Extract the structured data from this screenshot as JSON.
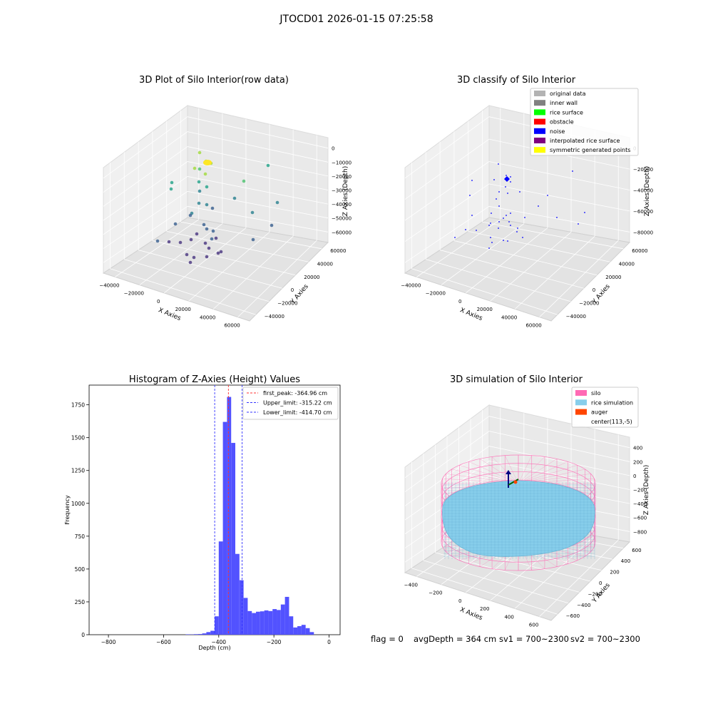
{
  "figure": {
    "suptitle": "JTOCD01 2026-01-15 07:25:58",
    "status_line": {
      "flag": "flag = 0",
      "avg_depth": "avgDepth = 364 cm",
      "sv1": "sv1 = 700~2300",
      "sv2": "sv2 = 700~2300"
    }
  },
  "colors": {
    "histogram_bar": "#5252ff",
    "peak_line": "#ff3333",
    "limit_line": "#3333ff",
    "silo_wire": "#ff69b4",
    "rice": "#87ceeb",
    "auger": "#ff4500",
    "pane": "#f2f2f2"
  },
  "chart_data": [
    {
      "type": "scatter",
      "title": "3D Plot of Silo Interior(row data)",
      "xlabel": "X Axies",
      "ylabel": "Y Axies",
      "zlabel": "Z Axies (Depth)",
      "xticks": [
        "−40000",
        "−20000",
        "0",
        "20000",
        "40000",
        "60000"
      ],
      "yticks": [
        "−40000",
        "−20000",
        "0",
        "20000",
        "40000",
        "60000"
      ],
      "zticks": [
        "−60000",
        "−50000",
        "−40000",
        "−30000",
        "−20000",
        "−10000",
        "0"
      ]
    },
    {
      "type": "scatter",
      "title": "3D classify of Silo Interior",
      "xlabel": "X Axies",
      "ylabel": "Y Axies",
      "zlabel": "Z Axies (Depth)",
      "xticks": [
        "−40000",
        "−20000",
        "0",
        "20000",
        "40000",
        "60000"
      ],
      "yticks": [
        "−40000",
        "−20000",
        "0",
        "20000",
        "40000",
        "60000"
      ],
      "zticks": [
        "−80000",
        "−60000",
        "−40000",
        "−20000",
        "0"
      ],
      "legend": [
        {
          "label": "original data",
          "color": "#b3b3b3"
        },
        {
          "label": "inner wall",
          "color": "#808080"
        },
        {
          "label": "rice surface",
          "color": "#00ff00"
        },
        {
          "label": "obstacle",
          "color": "#ff0000"
        },
        {
          "label": "noise",
          "color": "#0000ff"
        },
        {
          "label": "interpolated rice surface",
          "color": "#800080"
        },
        {
          "label": "symmetric generated points",
          "color": "#ffff00"
        }
      ]
    },
    {
      "type": "bar",
      "title": "Histogram of Z-Axies (Height) Values",
      "xlabel": "Depth (cm)",
      "ylabel": "Frequency",
      "xlim": [
        -870,
        40
      ],
      "ylim": [
        0,
        1900
      ],
      "xticks": [
        -800,
        -600,
        -400,
        -200,
        0
      ],
      "xtick_labels": [
        "−800",
        "−600",
        "−400",
        "−200",
        "0"
      ],
      "yticks": [
        0,
        250,
        500,
        750,
        1000,
        1250,
        1500,
        1750
      ],
      "bin_width": 15,
      "bins": [
        {
          "x": -520,
          "v": 3
        },
        {
          "x": -505,
          "v": 2
        },
        {
          "x": -490,
          "v": 4
        },
        {
          "x": -475,
          "v": 5
        },
        {
          "x": -460,
          "v": 10
        },
        {
          "x": -445,
          "v": 20
        },
        {
          "x": -430,
          "v": 30
        },
        {
          "x": -415,
          "v": 140
        },
        {
          "x": -400,
          "v": 710
        },
        {
          "x": -385,
          "v": 1620
        },
        {
          "x": -370,
          "v": 1810
        },
        {
          "x": -355,
          "v": 1460
        },
        {
          "x": -340,
          "v": 615
        },
        {
          "x": -325,
          "v": 415
        },
        {
          "x": -310,
          "v": 280
        },
        {
          "x": -295,
          "v": 180
        },
        {
          "x": -280,
          "v": 165
        },
        {
          "x": -265,
          "v": 175
        },
        {
          "x": -250,
          "v": 178
        },
        {
          "x": -235,
          "v": 185
        },
        {
          "x": -220,
          "v": 180
        },
        {
          "x": -205,
          "v": 195
        },
        {
          "x": -190,
          "v": 188
        },
        {
          "x": -175,
          "v": 230
        },
        {
          "x": -160,
          "v": 288
        },
        {
          "x": -145,
          "v": 140
        },
        {
          "x": -130,
          "v": 55
        },
        {
          "x": -115,
          "v": 65
        },
        {
          "x": -100,
          "v": 75
        },
        {
          "x": -85,
          "v": 50
        },
        {
          "x": -70,
          "v": 20
        }
      ],
      "vlines": [
        {
          "name": "first_peak",
          "label": "first_peak: -364.96 cm",
          "x": -364.96,
          "color": "#ff3333"
        },
        {
          "name": "upper_limit",
          "label": "Upper_limit: -315.22 cm",
          "x": -315.22,
          "color": "#3333ff"
        },
        {
          "name": "lower_limit",
          "label": "Lower_limit: -414.70 cm",
          "x": -414.7,
          "color": "#3333ff"
        }
      ]
    },
    {
      "type": "scatter",
      "title": "3D simulation of Silo Interior",
      "xlabel": "X Axies",
      "ylabel": "Y Axies",
      "zlabel": "Z Axies (Depth)",
      "xticks": [
        "−400",
        "−200",
        "0",
        "200",
        "400",
        "600"
      ],
      "yticks": [
        "−600",
        "−400",
        "−200",
        "0",
        "200",
        "400",
        "600"
      ],
      "zticks": [
        "−800",
        "−600",
        "−400",
        "−200",
        "0",
        "200",
        "400"
      ],
      "legend": [
        {
          "label": "silo",
          "color": "#ff69b4"
        },
        {
          "label": "rice simulation",
          "color": "#87ceeb"
        },
        {
          "label": "auger",
          "color": "#ff4500"
        },
        {
          "label": "center(113,-5)",
          "color": ""
        }
      ]
    }
  ]
}
